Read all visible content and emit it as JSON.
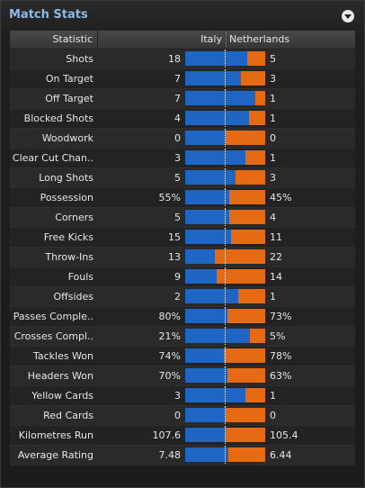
{
  "panel": {
    "title": "Match Stats"
  },
  "header": {
    "statistic": "Statistic",
    "home": "Italy",
    "away": "Netherlands"
  },
  "colors": {
    "home": "#1f66c4",
    "away": "#e66a14",
    "title": "#8ebbe6"
  },
  "stats": [
    {
      "label": "Shots",
      "home": "18",
      "away": "5",
      "home_share": 0.78
    },
    {
      "label": "On Target",
      "home": "7",
      "away": "3",
      "home_share": 0.7
    },
    {
      "label": "Off Target",
      "home": "7",
      "away": "1",
      "home_share": 0.875
    },
    {
      "label": "Blocked Shots",
      "home": "4",
      "away": "1",
      "home_share": 0.8
    },
    {
      "label": "Woodwork",
      "home": "0",
      "away": "0",
      "home_share": 0.5
    },
    {
      "label": "Clear Cut Chan..",
      "home": "3",
      "away": "1",
      "home_share": 0.75
    },
    {
      "label": "Long Shots",
      "home": "5",
      "away": "3",
      "home_share": 0.625
    },
    {
      "label": "Possession",
      "home": "55%",
      "away": "45%",
      "home_share": 0.55
    },
    {
      "label": "Corners",
      "home": "5",
      "away": "4",
      "home_share": 0.555
    },
    {
      "label": "Free Kicks",
      "home": "15",
      "away": "11",
      "home_share": 0.577
    },
    {
      "label": "Throw-Ins",
      "home": "13",
      "away": "22",
      "home_share": 0.371
    },
    {
      "label": "Fouls",
      "home": "9",
      "away": "14",
      "home_share": 0.391
    },
    {
      "label": "Offsides",
      "home": "2",
      "away": "1",
      "home_share": 0.667
    },
    {
      "label": "Passes Comple..",
      "home": "80%",
      "away": "73%",
      "home_share": 0.523
    },
    {
      "label": "Crosses Compl..",
      "home": "21%",
      "away": "5%",
      "home_share": 0.808
    },
    {
      "label": "Tackles Won",
      "home": "74%",
      "away": "78%",
      "home_share": 0.487
    },
    {
      "label": "Headers Won",
      "home": "70%",
      "away": "63%",
      "home_share": 0.526
    },
    {
      "label": "Yellow Cards",
      "home": "3",
      "away": "1",
      "home_share": 0.75
    },
    {
      "label": "Red Cards",
      "home": "0",
      "away": "0",
      "home_share": 0.5
    },
    {
      "label": "Kilometres Run",
      "home": "107.6",
      "away": "105.4",
      "home_share": 0.505
    },
    {
      "label": "Average Rating",
      "home": "7.48",
      "away": "6.44",
      "home_share": 0.537
    }
  ]
}
